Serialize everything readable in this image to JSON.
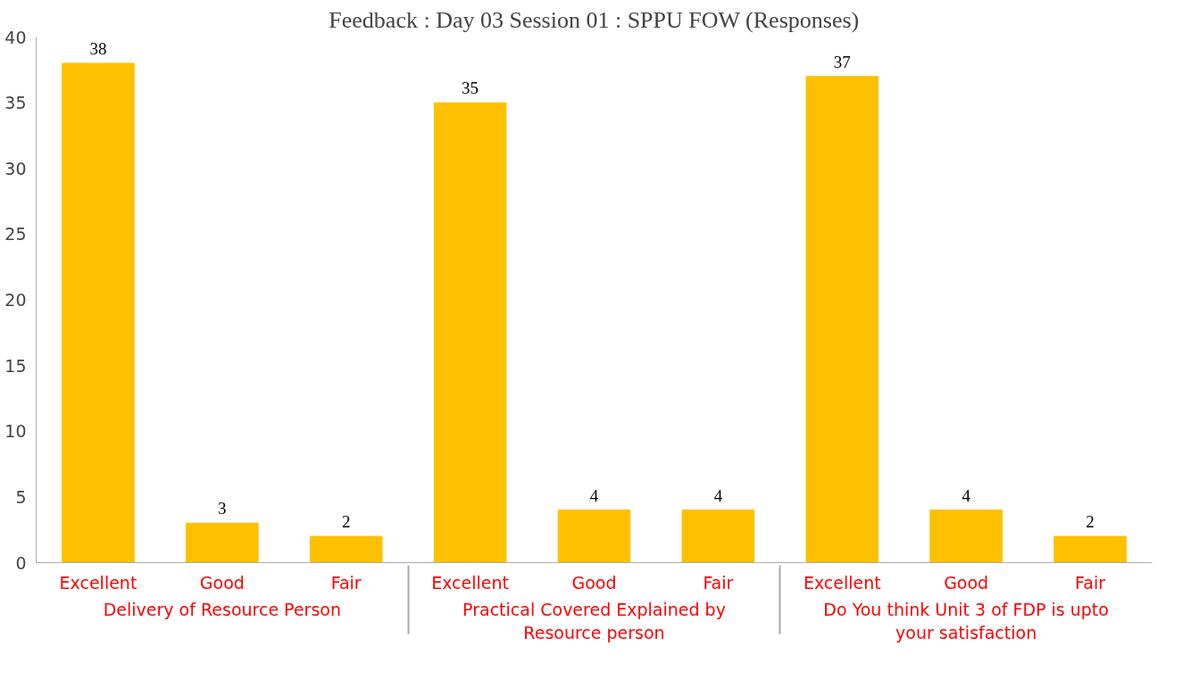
{
  "chart_data": {
    "type": "bar",
    "title": "Feedback : Day 03 Session 01 : SPPU FOW (Responses)",
    "categories": [
      "Excellent",
      "Good",
      "Fair",
      "Excellent",
      "Good",
      "Fair",
      "Excellent",
      "Good",
      "Fair"
    ],
    "values": [
      38,
      3,
      2,
      35,
      4,
      4,
      37,
      4,
      2
    ],
    "color": "#ffc000",
    "ylim": [
      0,
      40
    ],
    "yticks": [
      0,
      5,
      10,
      15,
      20,
      25,
      30,
      35,
      40
    ],
    "grid": false,
    "data_labels": true,
    "annotations": [
      "Delivery of Resource Person",
      "Practical Covered Explained by\nResource person",
      "Do You think Unit 3 of FDP is upto\nyour satisfaction"
    ]
  }
}
